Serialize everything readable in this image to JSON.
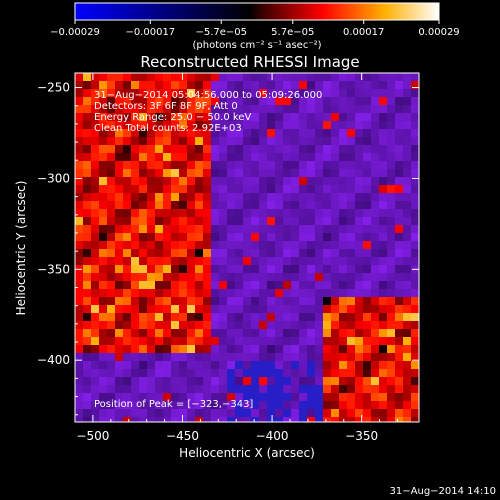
{
  "chart_data": {
    "type": "heatmap",
    "title": "Reconstructed RHESSI Image",
    "xlabel": "Heliocentric X (arcsec)",
    "ylabel": "Heliocentric Y (arcsec)",
    "xlim": [
      -510,
      -318
    ],
    "ylim": [
      -434,
      -242
    ],
    "x_ticks": [
      -500,
      -450,
      -400,
      -350
    ],
    "y_ticks": [
      -250,
      -300,
      -350,
      -400
    ],
    "x_tick_labels": [
      "−500",
      "−450",
      "−400",
      "−350"
    ],
    "y_tick_labels": [
      "−250",
      "−300",
      "−350",
      "−400"
    ],
    "colorbar": {
      "range": [
        -0.00029,
        0.00029
      ],
      "ticks": [
        -0.00029,
        -0.00017,
        -5.7e-05,
        5.7e-05,
        0.00017,
        0.00029
      ],
      "tick_labels": [
        "−0.00029",
        "−0.00017",
        "−5.7e−05",
        "5.7e−05",
        "0.00017",
        "0.00029"
      ],
      "unit_label": "(photons cm⁻² s⁻¹ asec⁻²)",
      "colors": [
        "#0000ff",
        "#000000",
        "#ff0000",
        "#ffff00",
        "#ffffff"
      ]
    },
    "annotations": [
      "31−Aug−2014 05:04:56.000 to 05:09:26.000",
      "Detectors: 3F 6F 8F 9F, Att 0",
      "Energy Range: 25.0 − 50.0 keV",
      "Clean    Total counts: 2.92E+03"
    ],
    "peak_label": "Position of Peak = [−323,−343]",
    "peak": [
      -323,
      -343
    ],
    "timestamp": "31−Aug−2014 14:10",
    "grid": false,
    "legend": "none"
  }
}
